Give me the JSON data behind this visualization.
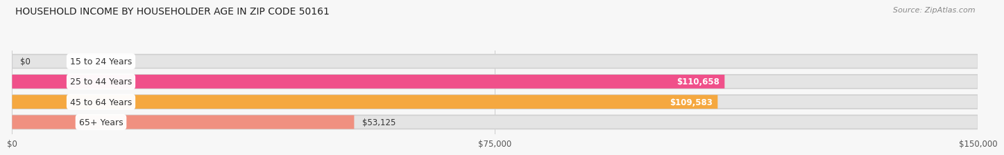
{
  "title": "HOUSEHOLD INCOME BY HOUSEHOLDER AGE IN ZIP CODE 50161",
  "source": "Source: ZipAtlas.com",
  "categories": [
    "15 to 24 Years",
    "25 to 44 Years",
    "45 to 64 Years",
    "65+ Years"
  ],
  "values": [
    0,
    110658,
    109583,
    53125
  ],
  "bar_colors": [
    "#b0b8e0",
    "#f0508a",
    "#f5a840",
    "#f09080"
  ],
  "value_labels": [
    "$0",
    "$110,658",
    "$109,583",
    "$53,125"
  ],
  "value_inside": [
    false,
    true,
    true,
    false
  ],
  "x_ticks": [
    0,
    75000,
    150000
  ],
  "x_tick_labels": [
    "$0",
    "$75,000",
    "$150,000"
  ],
  "xlim": [
    0,
    150000
  ],
  "background_color": "#f7f7f7",
  "bar_bg_color": "#e4e4e4",
  "label_bg_color": "#ffffff"
}
